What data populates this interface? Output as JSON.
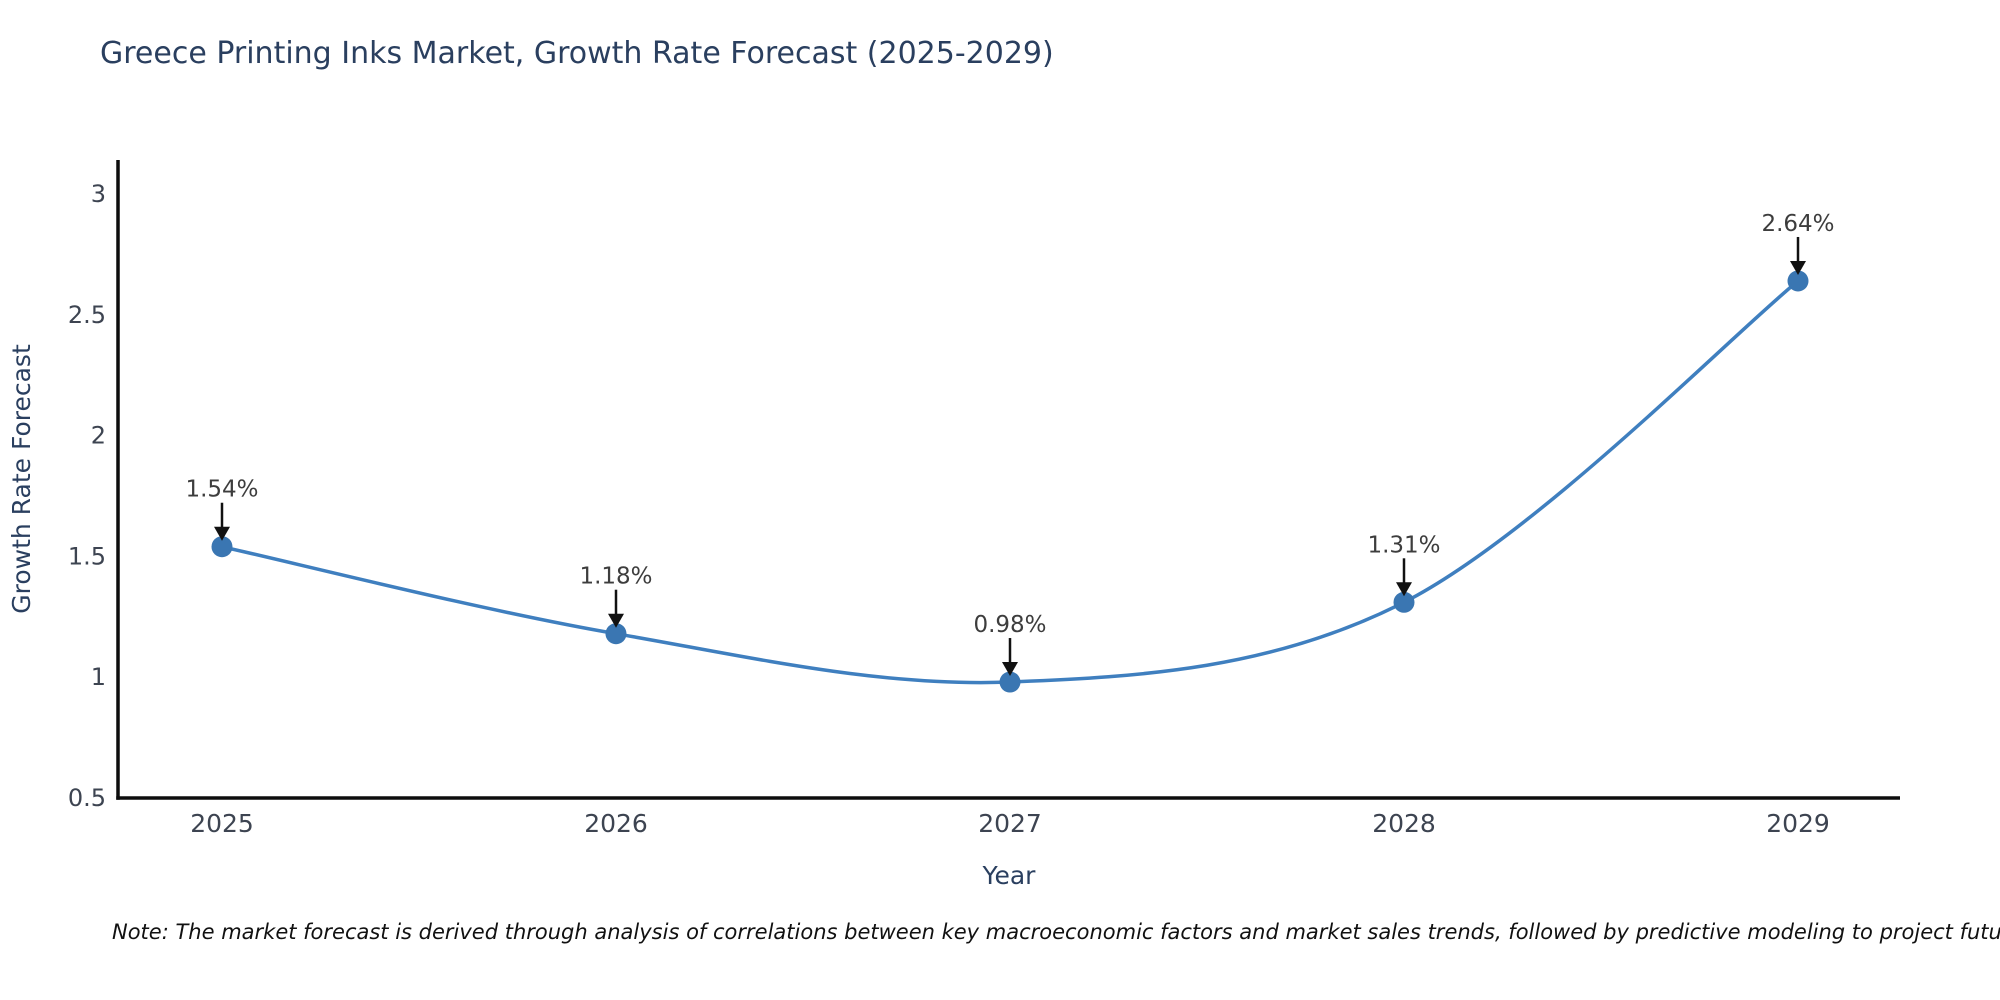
{
  "chart_data": {
    "type": "line",
    "title": "Greece Printing Inks Market, Growth Rate Forecast (2025-2029)",
    "xlabel": "Year",
    "ylabel": "Growth Rate Forecast",
    "categories": [
      "2025",
      "2026",
      "2027",
      "2028",
      "2029"
    ],
    "values": [
      1.54,
      1.18,
      0.98,
      1.31,
      2.64
    ],
    "point_labels": [
      "1.54%",
      "1.18%",
      "0.98%",
      "1.31%",
      "2.64%"
    ],
    "ytick_values": [
      0.5,
      1,
      1.5,
      2,
      2.5,
      3
    ],
    "ytick_labels": [
      "0.5",
      "1",
      "1.5",
      "2",
      "2.5",
      "3"
    ],
    "ylim": [
      0.5,
      3.14
    ],
    "line_shape": "spline",
    "grid": false,
    "legend": "none",
    "colors": {
      "line": "#3f7fbf",
      "marker": "#3a76b2",
      "axis": "#0d0d0d",
      "title_text": "#2a3f5f",
      "axis_title_text": "#2a3f5f",
      "tick_text": "#3d4451",
      "annotation_text": "#3d3d3d",
      "arrow": "#111111",
      "background": "#ffffff"
    }
  },
  "note": {
    "text": "Note: The market forecast is derived through analysis of correlations between key macroeconomic factors and market sales trends, followed by predictive modeling to project future sales"
  }
}
